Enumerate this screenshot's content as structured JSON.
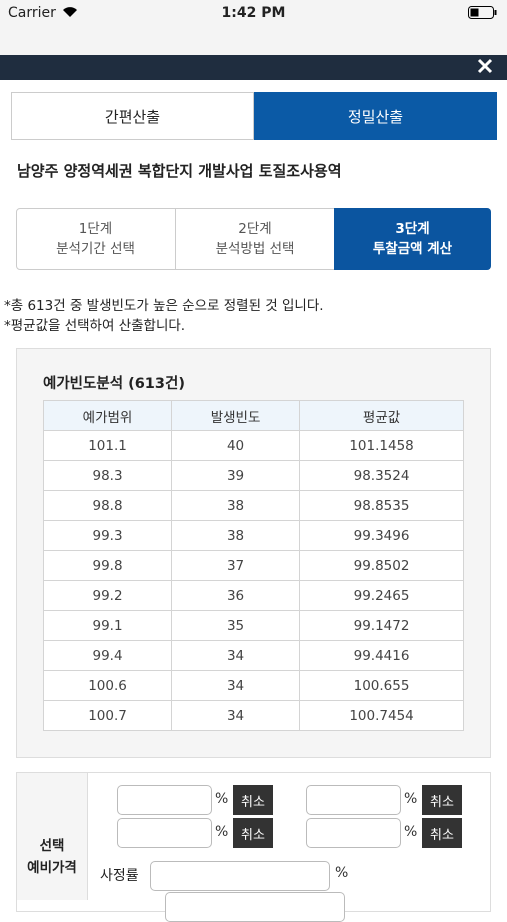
{
  "status": {
    "carrier": "Carrier",
    "time": "1:42 PM"
  },
  "tabs": [
    "간편산출",
    "정밀산출"
  ],
  "project_title": "남양주 양정역세권 복합단지 개발사업 토질조사용역",
  "steps": [
    [
      "1단계",
      "분석기간 선택"
    ],
    [
      "2단계",
      "분석방법 선택"
    ],
    [
      "3단계",
      "투찰금액 계산"
    ]
  ],
  "notes": [
    "*총 613건 중 발생빈도가 높은 순으로 정렬된 것 입니다.",
    "*평균값을 선택하여 산출합니다."
  ],
  "table": {
    "title": "예가빈도분석 (613건)",
    "headers": [
      "예가범위",
      "발생빈도",
      "평균값"
    ],
    "rows": [
      [
        "101.1",
        "40",
        "101.1458"
      ],
      [
        "98.3",
        "39",
        "98.3524"
      ],
      [
        "98.8",
        "38",
        "98.8535"
      ],
      [
        "99.3",
        "38",
        "99.3496"
      ],
      [
        "99.8",
        "37",
        "99.8502"
      ],
      [
        "99.2",
        "36",
        "99.2465"
      ],
      [
        "99.1",
        "35",
        "99.1472"
      ],
      [
        "99.4",
        "34",
        "99.4416"
      ],
      [
        "100.6",
        "34",
        "100.655"
      ],
      [
        "100.7",
        "34",
        "100.7454"
      ]
    ]
  },
  "form": {
    "label": [
      "선택",
      "예비가격"
    ],
    "pairs": [
      [
        "%",
        "취소"
      ],
      [
        "%",
        "취소"
      ],
      [
        "%",
        "취소"
      ],
      [
        "%",
        "취소"
      ]
    ],
    "rate_label": "사정률",
    "rate_unit": "%"
  }
}
